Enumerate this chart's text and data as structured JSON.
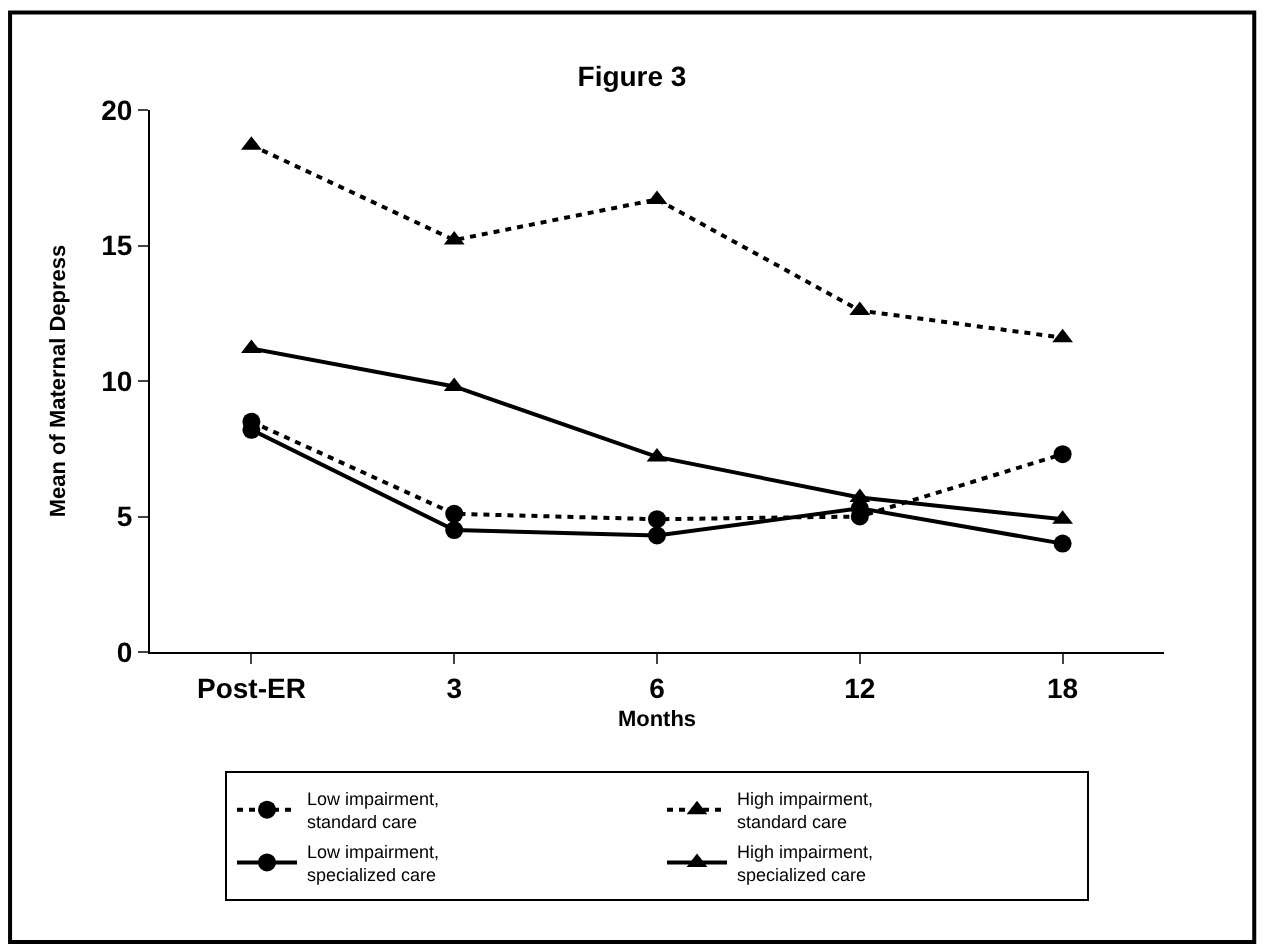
{
  "chart_data": {
    "type": "line",
    "title": "Figure 3",
    "xlabel": "Months",
    "ylabel": "Mean of Maternal Depress",
    "categories": [
      "Post-ER",
      "3",
      "6",
      "12",
      "18"
    ],
    "ylim": [
      0,
      20
    ],
    "yticks": [
      0,
      5,
      10,
      15,
      20
    ],
    "legend": "bottom",
    "series": [
      {
        "name": "Low impairment, standard care",
        "color": "#000000",
        "marker": "circle",
        "line_style": "dotted",
        "values": [
          8.5,
          5.1,
          4.9,
          5.0,
          7.3
        ]
      },
      {
        "name": "High impairment, standard care",
        "color": "#000000",
        "marker": "triangle",
        "line_style": "dotted",
        "values": [
          18.7,
          15.2,
          16.7,
          12.6,
          11.6
        ]
      },
      {
        "name": "Low impairment, specialized care",
        "color": "#000000",
        "marker": "circle",
        "line_style": "solid",
        "values": [
          8.2,
          4.5,
          4.3,
          5.3,
          4.0
        ]
      },
      {
        "name": "High impairment, specialized care",
        "color": "#000000",
        "marker": "triangle",
        "line_style": "solid",
        "values": [
          11.2,
          9.8,
          7.2,
          5.7,
          4.9
        ]
      }
    ]
  }
}
